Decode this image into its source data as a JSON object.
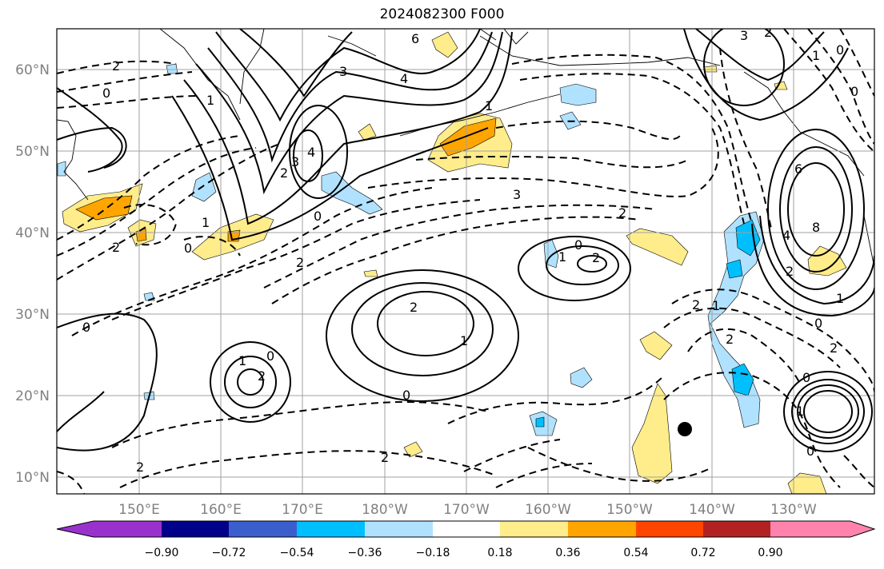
{
  "title": "2024082300 F000",
  "axes": {
    "lon_labels": [
      "150°E",
      "160°E",
      "170°E",
      "180°W",
      "170°W",
      "160°W",
      "150°W",
      "140°W",
      "130°W"
    ],
    "lat_labels": [
      "60°N",
      "50°N",
      "40°N",
      "30°N",
      "20°N",
      "10°N"
    ]
  },
  "colorbar": {
    "colors": [
      "#9932cc",
      "#00008b",
      "#3a5fcd",
      "#00bfff",
      "#b0e2ff",
      "#ffffff",
      "#ffec8b",
      "#ffa500",
      "#ff4500",
      "#b22222",
      "#ff83ad"
    ],
    "tick_labels": [
      "−0.90",
      "−0.72",
      "−0.54",
      "−0.36",
      "−0.18",
      "0.18",
      "0.36",
      "0.54",
      "0.72",
      "0.90"
    ]
  },
  "contour_labels": [
    {
      "text": "6"
    },
    {
      "text": "4"
    },
    {
      "text": "3"
    },
    {
      "text": "2"
    },
    {
      "text": "0"
    },
    {
      "text": "1"
    },
    {
      "text": "4"
    },
    {
      "text": "3"
    },
    {
      "text": "2"
    },
    {
      "text": "0"
    },
    {
      "text": "1"
    },
    {
      "text": "2"
    },
    {
      "text": "0"
    },
    {
      "text": "2"
    },
    {
      "text": "3"
    },
    {
      "text": "2"
    },
    {
      "text": "1"
    },
    {
      "text": "0"
    },
    {
      "text": "2"
    },
    {
      "text": "1"
    },
    {
      "text": "0"
    },
    {
      "text": "3"
    },
    {
      "text": "2"
    },
    {
      "text": "1"
    },
    {
      "text": "0"
    },
    {
      "text": "6"
    },
    {
      "text": "8"
    },
    {
      "text": "4"
    },
    {
      "text": "2"
    },
    {
      "text": "1"
    },
    {
      "text": "0"
    },
    {
      "text": "2"
    },
    {
      "text": "1"
    },
    {
      "text": "2"
    },
    {
      "text": "0"
    },
    {
      "text": "1"
    },
    {
      "text": "2"
    },
    {
      "text": "0"
    },
    {
      "text": "0"
    },
    {
      "text": "0"
    },
    {
      "text": "2"
    },
    {
      "text": "1"
    },
    {
      "text": "2"
    },
    {
      "text": "0"
    },
    {
      "text": "1"
    },
    {
      "text": "2"
    },
    {
      "text": "2"
    }
  ],
  "colors": {
    "frame": "#000000",
    "grid": "#a0a0a0",
    "contour": "#000000",
    "marker": "#000000"
  }
}
